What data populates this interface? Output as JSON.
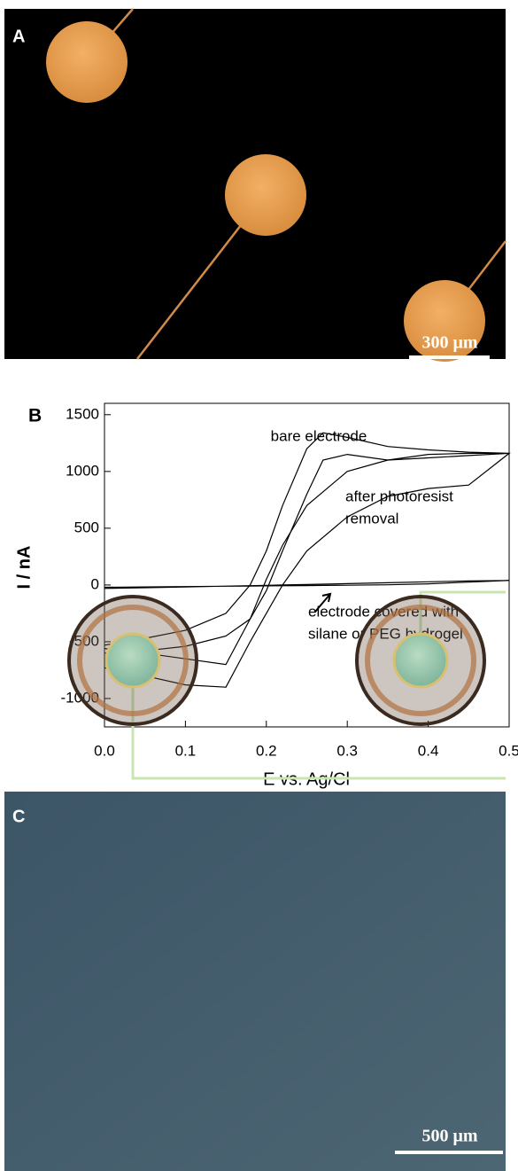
{
  "panel_a": {
    "label": "A",
    "scale_bar": "300 μm"
  },
  "chart_data": {
    "type": "line",
    "panel_label": "B",
    "x_label": "E vs. Ag/Cl",
    "y_label": "I / nA",
    "xlim": [
      0,
      0.5
    ],
    "ylim": [
      -1250,
      1600
    ],
    "xticks": [
      {
        "value": 0,
        "label": "0.0"
      },
      0.1,
      0.2,
      0.3,
      0.4,
      0.5
    ],
    "yticks": [
      1500,
      1000,
      500,
      0,
      -500,
      -1000
    ],
    "x": [
      0,
      0.05,
      0.1,
      0.15,
      0.18,
      0.2,
      0.22,
      0.25,
      0.27,
      0.3,
      0.35,
      0.4,
      0.45,
      0.5,
      0.45,
      0.4,
      0.35,
      0.3,
      0.25,
      0.22,
      0.2,
      0.18,
      0.15,
      0.1,
      0.05,
      0
    ],
    "series": [
      {
        "name": "bare electrode",
        "color": "#000000",
        "values": [
          -530,
          -470,
          -400,
          -250,
          0,
          300,
          700,
          1200,
          1340,
          1300,
          1220,
          1190,
          1170,
          1160,
          1160,
          1150,
          1100,
          1000,
          700,
          350,
          50,
          -300,
          -700,
          -650,
          -600,
          -560
        ]
      },
      {
        "name": "after photoresist removal",
        "color": "#000000",
        "values": [
          -600,
          -580,
          -540,
          -450,
          -300,
          -50,
          300,
          800,
          1100,
          1150,
          1100,
          1120,
          1140,
          1160,
          880,
          850,
          780,
          600,
          300,
          0,
          -250,
          -500,
          -900,
          -880,
          -800,
          -730
        ]
      },
      {
        "name": "electrode covered with silane or PEG hydrogel",
        "color": "#000000",
        "values": [
          -20,
          -17,
          -14,
          -11,
          -9,
          -8,
          -7,
          -5,
          -4,
          -2,
          2,
          10,
          25,
          40,
          35,
          28,
          20,
          12,
          4,
          0,
          -3,
          -6,
          -10,
          -17,
          -24,
          -30
        ]
      }
    ],
    "annotations": [
      "bare electrode",
      "after photoresist",
      "removal",
      "electrode covered with",
      "silane or PEG hydrogel"
    ]
  },
  "panel_c": {
    "label": "C",
    "scale_bar": "500 μm"
  }
}
